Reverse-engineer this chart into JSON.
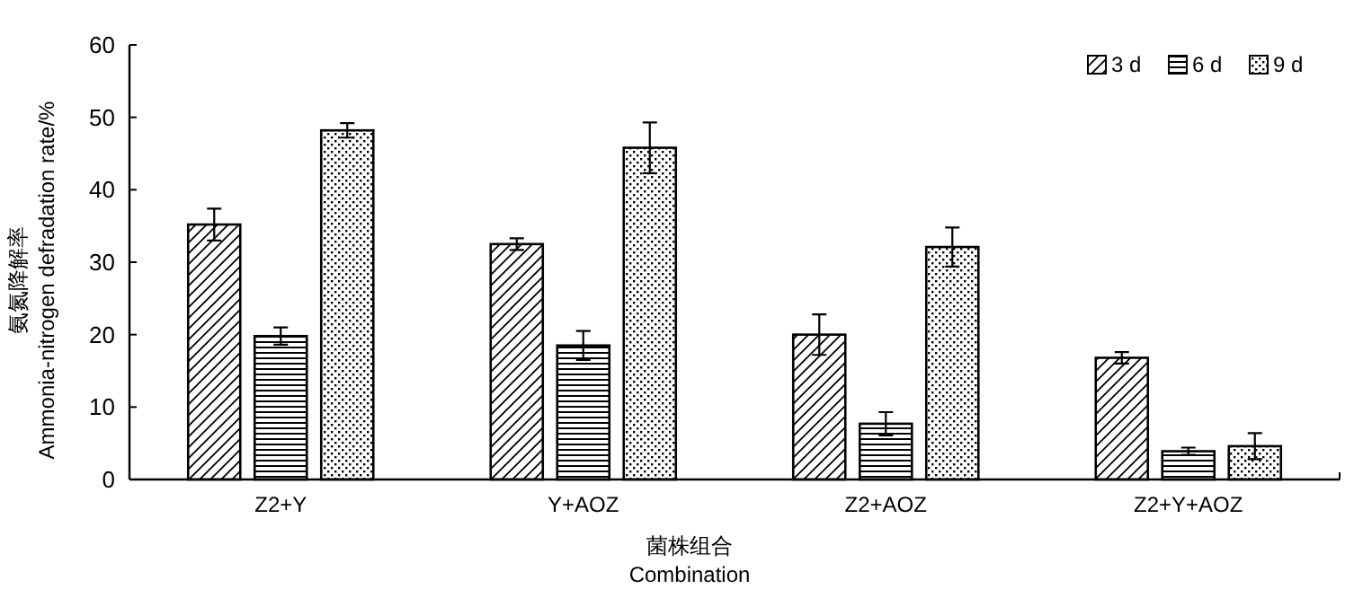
{
  "chart_data": {
    "type": "bar",
    "xlabel": "菌株组合\nCombination",
    "ylabel": "氨氮降解率\nAmmonia-nitrogen defradation rate/%",
    "categories": [
      "Z2+Y",
      "Y+AOZ",
      "Z2+AOZ",
      "Z2+Y+AOZ"
    ],
    "series": [
      {
        "name": "3 d",
        "color": "#000000",
        "values": [
          35.2,
          32.5,
          20.0,
          16.8
        ],
        "errors": [
          2.2,
          0.8,
          2.8,
          0.8
        ]
      },
      {
        "name": "6 d",
        "color": "#000000",
        "values": [
          19.8,
          18.5,
          7.7,
          3.9
        ],
        "errors": [
          1.2,
          2.0,
          1.6,
          0.5
        ]
      },
      {
        "name": "9 d",
        "color": "#000000",
        "values": [
          48.2,
          45.8,
          32.1,
          4.6
        ],
        "errors": [
          1.0,
          3.5,
          2.7,
          1.8
        ]
      }
    ],
    "ylim": [
      0,
      60
    ],
    "yticks": [
      0,
      10,
      20,
      30,
      40,
      50,
      60
    ],
    "legend": "top right",
    "grid": false
  }
}
